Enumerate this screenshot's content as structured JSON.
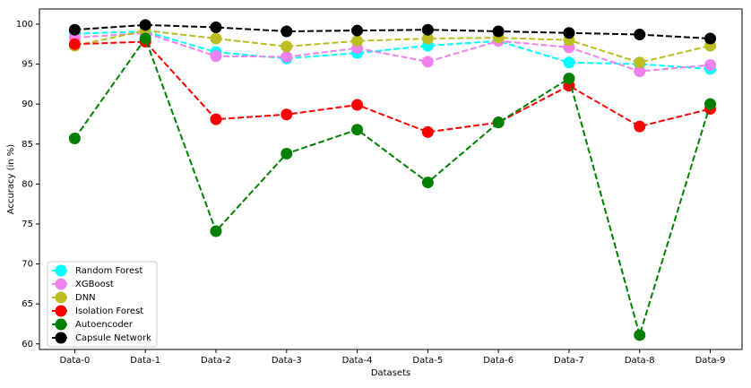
{
  "chart_data": {
    "type": "line",
    "x_label": "Datasets",
    "y_label": "Accuracy (in %)",
    "categories": [
      "Data-0",
      "Data-1",
      "Data-2",
      "Data-3",
      "Data-4",
      "Data-5",
      "Data-6",
      "Data-7",
      "Data-8",
      "Data-9"
    ],
    "series": [
      {
        "name": "Random Forest",
        "color": "#00ffff",
        "values": [
          98.8,
          99.1,
          96.5,
          95.7,
          96.4,
          97.3,
          97.9,
          95.2,
          95.0,
          94.4
        ]
      },
      {
        "name": "XGBoost",
        "color": "#ee82ee",
        "values": [
          98.3,
          98.9,
          96.0,
          95.9,
          97.0,
          95.3,
          97.9,
          97.1,
          94.1,
          94.9
        ]
      },
      {
        "name": "DNN",
        "color": "#bcbd22",
        "values": [
          97.3,
          99.2,
          98.2,
          97.2,
          97.9,
          98.2,
          98.3,
          98.0,
          95.2,
          97.3
        ]
      },
      {
        "name": "Isolation Forest",
        "color": "#ff0000",
        "values": [
          97.5,
          97.8,
          88.1,
          88.7,
          89.9,
          86.5,
          87.7,
          92.3,
          87.2,
          89.4
        ]
      },
      {
        "name": "Autoencoder",
        "color": "#008000",
        "values": [
          85.7,
          98.2,
          74.1,
          83.8,
          86.8,
          80.2,
          87.7,
          93.2,
          61.1,
          90.0
        ]
      },
      {
        "name": "Capsule Network",
        "color": "#000000",
        "values": [
          99.3,
          99.9,
          99.6,
          99.1,
          99.2,
          99.3,
          99.1,
          98.9,
          98.7,
          98.2
        ]
      }
    ],
    "ylim": [
      59.3,
      101.9
    ],
    "yticks": [
      60,
      65,
      70,
      75,
      80,
      85,
      90,
      95,
      100
    ],
    "legend": "lower left"
  }
}
